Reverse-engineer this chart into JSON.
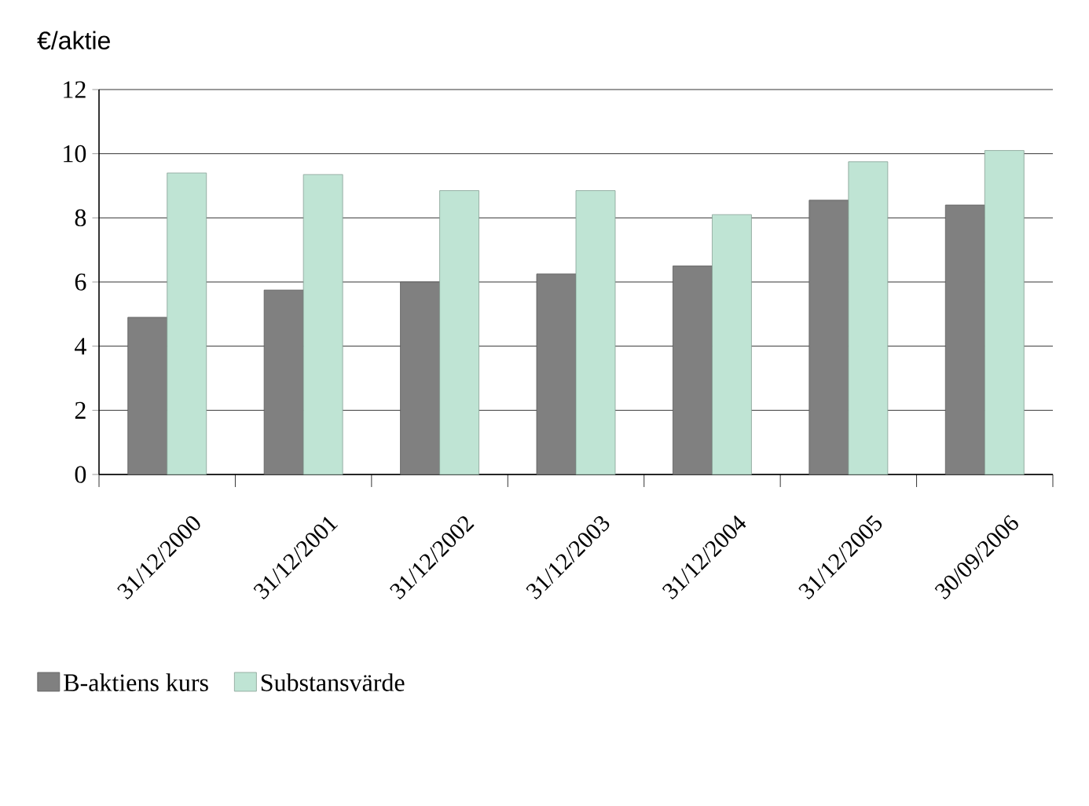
{
  "chart_data": {
    "type": "bar",
    "ylabel": "€/aktie",
    "categories": [
      "31/12/2000",
      "31/12/2001",
      "31/12/2002",
      "31/12/2003",
      "31/12/2004",
      "31/12/2005",
      "30/09/2006"
    ],
    "series": [
      {
        "name": "B-aktiens kurs",
        "color": "#808080",
        "values": [
          4.9,
          5.75,
          6.0,
          6.25,
          6.5,
          8.55,
          8.4
        ]
      },
      {
        "name": "Substansvärde",
        "color": "#bfe4d4",
        "values": [
          9.4,
          9.35,
          8.85,
          8.85,
          8.1,
          9.75,
          10.1
        ]
      }
    ],
    "ylim": [
      0,
      12
    ],
    "yticks": [
      0,
      2,
      4,
      6,
      8,
      10,
      12
    ],
    "grid": "y",
    "legend": "bottom left"
  }
}
